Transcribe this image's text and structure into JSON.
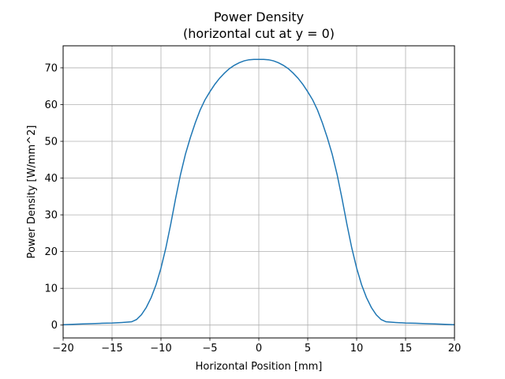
{
  "chart_data": {
    "type": "line",
    "title": "Power Density",
    "subtitle": "(horizontal cut at y = 0)",
    "xlabel": "Horizontal Position [mm]",
    "ylabel": "Power Density [W/mm^2]",
    "xlim": [
      -20,
      20
    ],
    "ylim": [
      -3.5,
      76
    ],
    "xticks": [
      -20,
      -15,
      -10,
      -5,
      0,
      5,
      10,
      15,
      20
    ],
    "xtick_labels": [
      "−20",
      "−15",
      "−10",
      "−5",
      "0",
      "5",
      "10",
      "15",
      "20"
    ],
    "yticks": [
      0,
      10,
      20,
      30,
      40,
      50,
      60,
      70
    ],
    "ytick_labels": [
      "0",
      "10",
      "20",
      "30",
      "40",
      "50",
      "60",
      "70"
    ],
    "grid": true,
    "series": [
      {
        "color": "#1f77b4",
        "x": [
          -20,
          -19,
          -18,
          -17,
          -16,
          -15,
          -14,
          -13,
          -12.5,
          -12,
          -11.5,
          -11,
          -10.5,
          -10,
          -9.5,
          -9,
          -8.5,
          -8,
          -7.5,
          -7,
          -6.5,
          -6,
          -5.5,
          -5,
          -4.5,
          -4,
          -3.5,
          -3,
          -2.5,
          -2,
          -1.5,
          -1,
          -0.5,
          0,
          0.5,
          1,
          1.5,
          2,
          2.5,
          3,
          3.5,
          4,
          4.5,
          5,
          5.5,
          6,
          6.5,
          7,
          7.5,
          8,
          8.5,
          9,
          9.5,
          10,
          10.5,
          11,
          11.5,
          12,
          12.5,
          13,
          14,
          15,
          16,
          17,
          18,
          19,
          20
        ],
        "y": [
          0.1,
          0.2,
          0.3,
          0.4,
          0.5,
          0.55,
          0.7,
          0.9,
          1.5,
          2.8,
          4.8,
          7.5,
          11.0,
          15.5,
          21.0,
          27.5,
          34.5,
          41.0,
          46.5,
          51.0,
          55.0,
          58.5,
          61.3,
          63.5,
          65.5,
          67.2,
          68.6,
          69.8,
          70.7,
          71.4,
          71.9,
          72.2,
          72.3,
          72.3,
          72.3,
          72.2,
          71.9,
          71.4,
          70.7,
          69.8,
          68.6,
          67.2,
          65.5,
          63.5,
          61.3,
          58.5,
          55.0,
          51.0,
          46.5,
          41.0,
          34.5,
          27.5,
          21.0,
          15.5,
          11.0,
          7.5,
          4.8,
          2.8,
          1.5,
          0.9,
          0.7,
          0.55,
          0.5,
          0.4,
          0.3,
          0.2,
          0.1
        ]
      }
    ]
  }
}
